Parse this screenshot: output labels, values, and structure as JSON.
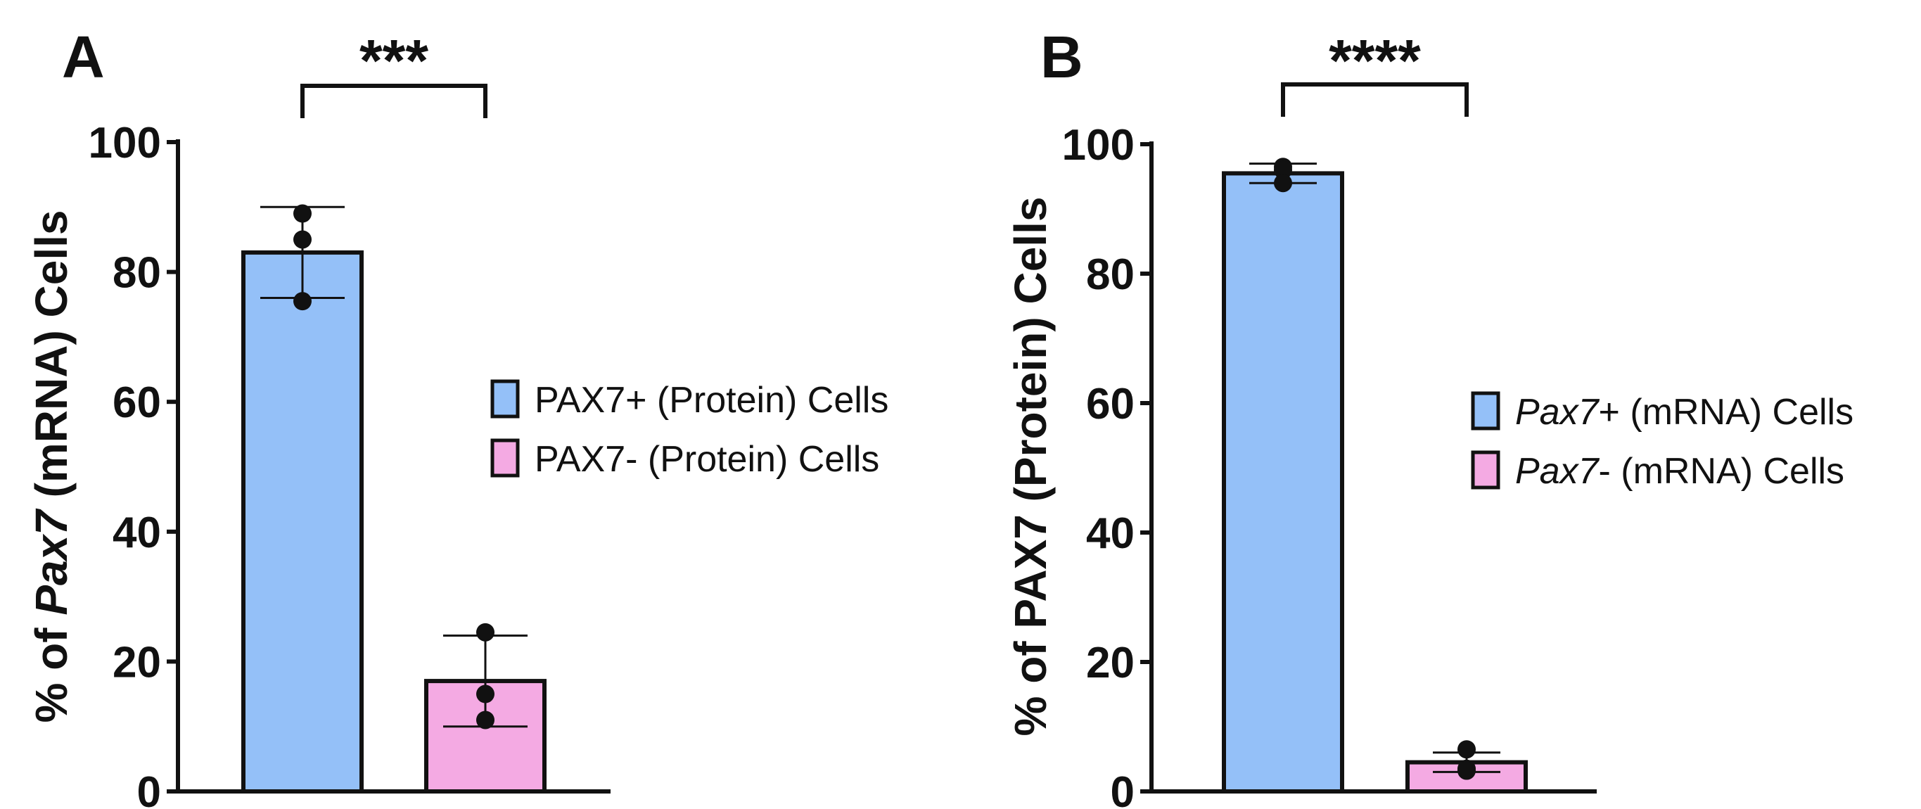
{
  "colors": {
    "blue": "#94C0F8",
    "pink": "#F4AAE3",
    "ink": "#111111"
  },
  "chart_data": [
    {
      "panel": "A",
      "type": "bar",
      "ylabel_parts": [
        {
          "text": "% of ",
          "italic": false
        },
        {
          "text": "Pax7",
          "italic": true
        },
        {
          "text": " (mRNA) Cells",
          "italic": false
        }
      ],
      "ylim": [
        0,
        100
      ],
      "yticks": [
        "0",
        "20",
        "40",
        "60",
        "80",
        "100"
      ],
      "significance": "***",
      "bars": [
        {
          "legend_label": "PAX7+ (Protein) Cells",
          "legend_parts": [
            {
              "text": "PAX7+ (Protein) Cells",
              "italic": false
            }
          ],
          "color": "#94C0F8",
          "mean": 83,
          "error_low": 76,
          "error_high": 90,
          "points": [
            89,
            85,
            75.5
          ]
        },
        {
          "legend_label": "PAX7- (Protein) Cells",
          "legend_parts": [
            {
              "text": "PAX7- (Protein) Cells",
              "italic": false
            }
          ],
          "color": "#F4AAE3",
          "mean": 17,
          "error_low": 10,
          "error_high": 24,
          "points": [
            24.5,
            15,
            11
          ]
        }
      ]
    },
    {
      "panel": "B",
      "type": "bar",
      "ylabel_parts": [
        {
          "text": "% of PAX7 (Protein) Cells",
          "italic": false
        }
      ],
      "ylim": [
        0,
        100
      ],
      "yticks": [
        "0",
        "20",
        "40",
        "60",
        "80",
        "100"
      ],
      "significance": "****",
      "bars": [
        {
          "legend_label": "Pax7+ (mRNA) Cells",
          "legend_parts": [
            {
              "text": "Pax7",
              "italic": true
            },
            {
              "text": "+ (mRNA) Cells",
              "italic": false
            }
          ],
          "color": "#94C0F8",
          "mean": 95.5,
          "error_low": 94,
          "error_high": 97,
          "points": [
            96.5,
            96,
            94
          ]
        },
        {
          "legend_label": "Pax7- (mRNA) Cells",
          "legend_parts": [
            {
              "text": "Pax7",
              "italic": true
            },
            {
              "text": "- (mRNA) Cells",
              "italic": false
            }
          ],
          "color": "#F4AAE3",
          "mean": 4.5,
          "error_low": 3,
          "error_high": 6,
          "points": [
            6.5,
            3.5,
            3.2
          ]
        }
      ]
    }
  ]
}
